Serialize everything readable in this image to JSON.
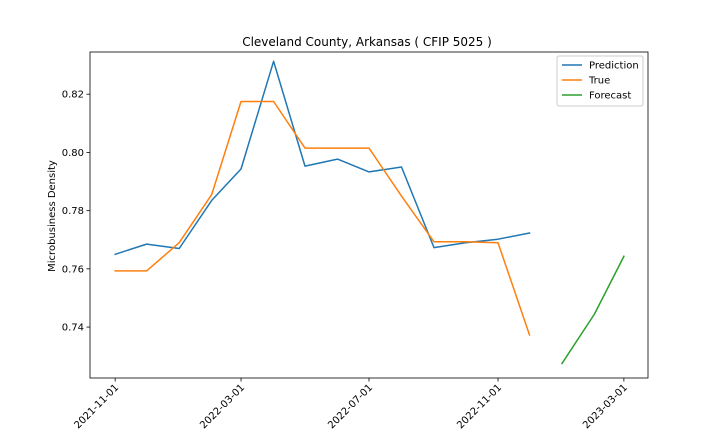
{
  "chart_data": {
    "type": "line",
    "title": "Cleveland County, Arkansas ( CFIP 5025 )",
    "xlabel": "",
    "ylabel": "Microbusiness Density",
    "x_ticks": [
      "2021-11-01",
      "2022-03-01",
      "2022-07-01",
      "2022-11-01",
      "2023-03-01"
    ],
    "y_ticks": [
      "0.74",
      "0.76",
      "0.78",
      "0.80",
      "0.82"
    ],
    "ylim": [
      0.7225,
      0.8345
    ],
    "xlim": [
      "2021-10-08",
      "2023-03-24"
    ],
    "grid": false,
    "legend_position": "top-right",
    "series": [
      {
        "name": "Prediction",
        "color": "#1f77b4",
        "points": [
          {
            "x": "2021-11-01",
            "y": 0.765
          },
          {
            "x": "2021-12-01",
            "y": 0.7685
          },
          {
            "x": "2022-01-01",
            "y": 0.767
          },
          {
            "x": "2022-02-01",
            "y": 0.7835
          },
          {
            "x": "2022-03-01",
            "y": 0.7943
          },
          {
            "x": "2022-04-01",
            "y": 0.8313
          },
          {
            "x": "2022-05-01",
            "y": 0.7953
          },
          {
            "x": "2022-06-01",
            "y": 0.7977
          },
          {
            "x": "2022-07-01",
            "y": 0.7933
          },
          {
            "x": "2022-08-01",
            "y": 0.795
          },
          {
            "x": "2022-09-01",
            "y": 0.7673
          },
          {
            "x": "2022-10-01",
            "y": 0.769
          },
          {
            "x": "2022-11-01",
            "y": 0.7702
          },
          {
            "x": "2022-12-01",
            "y": 0.7723
          }
        ]
      },
      {
        "name": "True",
        "color": "#ff7f0e",
        "points": [
          {
            "x": "2021-11-01",
            "y": 0.7593
          },
          {
            "x": "2021-12-01",
            "y": 0.7593
          },
          {
            "x": "2022-01-01",
            "y": 0.769
          },
          {
            "x": "2022-02-01",
            "y": 0.7855
          },
          {
            "x": "2022-03-01",
            "y": 0.8175
          },
          {
            "x": "2022-04-01",
            "y": 0.8175
          },
          {
            "x": "2022-05-01",
            "y": 0.8015
          },
          {
            "x": "2022-06-01",
            "y": 0.8015
          },
          {
            "x": "2022-07-01",
            "y": 0.8015
          },
          {
            "x": "2022-08-01",
            "y": 0.785
          },
          {
            "x": "2022-09-01",
            "y": 0.7693
          },
          {
            "x": "2022-10-01",
            "y": 0.7693
          },
          {
            "x": "2022-11-01",
            "y": 0.769
          },
          {
            "x": "2022-12-01",
            "y": 0.7373
          }
        ]
      },
      {
        "name": "Forecast",
        "color": "#2ca02c",
        "points": [
          {
            "x": "2023-01-01",
            "y": 0.7275
          },
          {
            "x": "2023-02-01",
            "y": 0.7445
          },
          {
            "x": "2023-03-01",
            "y": 0.7643
          }
        ]
      }
    ]
  }
}
